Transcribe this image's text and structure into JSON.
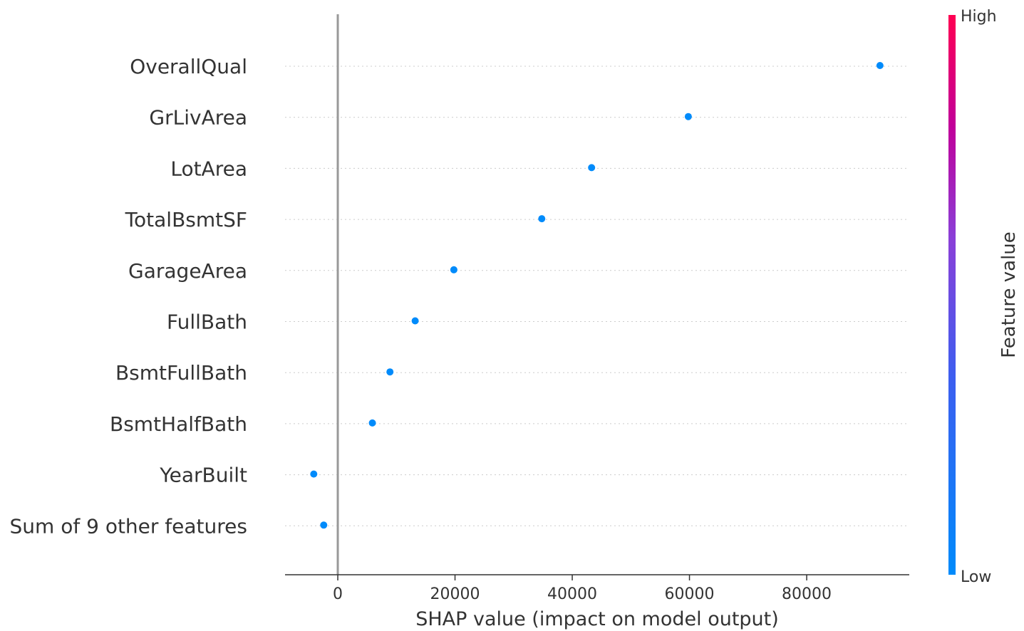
{
  "chart_data": {
    "type": "scatter",
    "categories": [
      "OverallQual",
      "GrLivArea",
      "LotArea",
      "TotalBsmtSF",
      "GarageArea",
      "FullBath",
      "BsmtFullBath",
      "BsmtHalfBath",
      "YearBuilt",
      "Sum of 9 other features"
    ],
    "values": [
      92500,
      59800,
      43300,
      34800,
      19800,
      13200,
      8900,
      5900,
      -4100,
      -2400
    ],
    "xlabel": "SHAP value (impact on model output)",
    "xlim": [
      -9000,
      97500
    ],
    "xticks": [
      0,
      20000,
      40000,
      60000,
      80000
    ],
    "xtick_labels": [
      "0",
      "20000",
      "40000",
      "60000",
      "80000"
    ],
    "grid": false,
    "point_color": "#008bfb",
    "colorbar": {
      "title": "Feature value",
      "high_label": "High",
      "low_label": "Low",
      "high_color": "#ff0052",
      "low_color": "#008bfb"
    }
  }
}
